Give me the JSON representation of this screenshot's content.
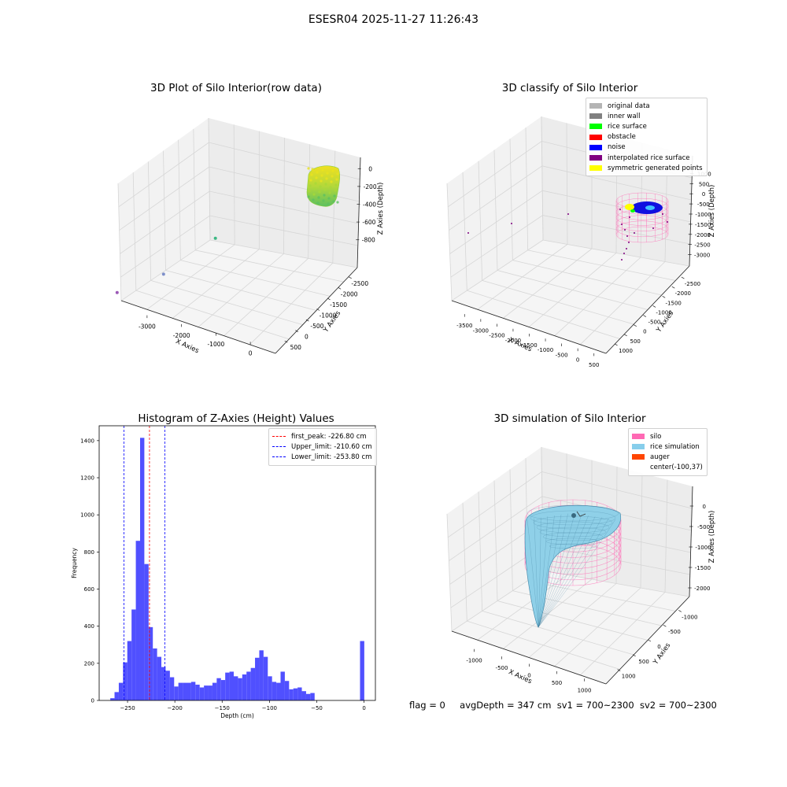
{
  "figure_title": "ESESR04 2025-11-27 11:26:43",
  "footer": {
    "flag": "flag = 0",
    "avg": "avgDepth = 347 cm",
    "sv1": "sv1 = 700~2300",
    "sv2": "sv2 = 700~2300"
  },
  "chart_data": [
    {
      "type": "scatter",
      "projection": "3d",
      "title": "3D Plot of Silo Interior(row data)",
      "xlabel": "X Axies",
      "ylabel": "Y Axies",
      "zlabel": "Z Axies (Depth)",
      "x_ticks": [
        "-3000",
        "-2000",
        "-1000",
        "0"
      ],
      "y_ticks": [
        "500",
        "0",
        "-500",
        "-1000",
        "-1500",
        "-2000",
        "-2500"
      ],
      "z_ticks": [
        "0",
        "-200",
        "-400",
        "-600",
        "-800"
      ],
      "points": [
        {
          "x": -3300,
          "y": -2300,
          "z": -900,
          "color": "#9b59b6"
        },
        {
          "x": -2600,
          "y": -1500,
          "z": -800,
          "color": "#7d8fc9"
        },
        {
          "x": -1900,
          "y": -500,
          "z": -500,
          "color": "#3cb883"
        }
      ],
      "cluster": {
        "description_color": "#c8e02c",
        "x": [
          -300,
          100
        ],
        "y": [
          -200,
          300
        ],
        "z": [
          -250,
          0
        ]
      }
    },
    {
      "type": "scatter",
      "projection": "3d",
      "title": "3D classify of Silo Interior",
      "xlabel": "X Axies",
      "ylabel": "Y Axies",
      "zlabel": "Z Axies (Depth)",
      "x_ticks": [
        "-3500",
        "-3000",
        "-2500",
        "-2000",
        "-1500",
        "-1000",
        "-500",
        "0",
        "500"
      ],
      "y_ticks": [
        "1000",
        "500",
        "0",
        "-500",
        "-1000",
        "-1500",
        "-2000",
        "-2500"
      ],
      "z_ticks": [
        "1000",
        "500",
        "0",
        "-500",
        "-1000",
        "-1500",
        "-2000",
        "-2500",
        "-3000"
      ],
      "legend": [
        {
          "label": "original data",
          "color": "#b4b4b4"
        },
        {
          "label": "inner wall",
          "color": "#808080"
        },
        {
          "label": "rice surface",
          "color": "#00ff00"
        },
        {
          "label": "obstacle",
          "color": "#ff0000"
        },
        {
          "label": "noise",
          "color": "#0000ff"
        },
        {
          "label": "interpolated rice surface",
          "color": "#800080"
        },
        {
          "label": "symmetric generated points",
          "color": "#ffff00"
        }
      ]
    },
    {
      "type": "bar",
      "title": "Histogram of Z-Axies (Height) Values",
      "xlabel": "Depth (cm)",
      "ylabel": "Frequency",
      "xlim": [
        -280,
        12
      ],
      "ylim": [
        0,
        1480
      ],
      "bin_width": 4.5,
      "x_ticks": [
        -250,
        -200,
        -150,
        -100,
        -50,
        0
      ],
      "y_ticks": [
        0,
        200,
        400,
        600,
        800,
        1000,
        1200,
        1400
      ],
      "bar_color": "#5050ff",
      "bins": [
        {
          "x": -266.0,
          "value": 12
        },
        {
          "x": -261.5,
          "value": 45
        },
        {
          "x": -257.0,
          "value": 95
        },
        {
          "x": -252.5,
          "value": 205
        },
        {
          "x": -248.0,
          "value": 320
        },
        {
          "x": -243.5,
          "value": 490
        },
        {
          "x": -239.0,
          "value": 860
        },
        {
          "x": -234.5,
          "value": 1415
        },
        {
          "x": -230.0,
          "value": 735
        },
        {
          "x": -225.5,
          "value": 395
        },
        {
          "x": -221.0,
          "value": 280
        },
        {
          "x": -216.5,
          "value": 235
        },
        {
          "x": -212.0,
          "value": 180
        },
        {
          "x": -207.5,
          "value": 160
        },
        {
          "x": -203.0,
          "value": 125
        },
        {
          "x": -198.5,
          "value": 75
        },
        {
          "x": -194.0,
          "value": 95
        },
        {
          "x": -189.5,
          "value": 95
        },
        {
          "x": -185.0,
          "value": 95
        },
        {
          "x": -180.5,
          "value": 100
        },
        {
          "x": -176.0,
          "value": 85
        },
        {
          "x": -171.5,
          "value": 70
        },
        {
          "x": -167.0,
          "value": 80
        },
        {
          "x": -162.5,
          "value": 80
        },
        {
          "x": -158.0,
          "value": 95
        },
        {
          "x": -153.5,
          "value": 120
        },
        {
          "x": -149.0,
          "value": 110
        },
        {
          "x": -144.5,
          "value": 150
        },
        {
          "x": -140.0,
          "value": 155
        },
        {
          "x": -135.5,
          "value": 130
        },
        {
          "x": -131.0,
          "value": 120
        },
        {
          "x": -126.5,
          "value": 140
        },
        {
          "x": -122.0,
          "value": 155
        },
        {
          "x": -117.5,
          "value": 175
        },
        {
          "x": -113.0,
          "value": 230
        },
        {
          "x": -108.5,
          "value": 270
        },
        {
          "x": -104.0,
          "value": 235
        },
        {
          "x": -99.5,
          "value": 130
        },
        {
          "x": -95.0,
          "value": 100
        },
        {
          "x": -90.5,
          "value": 95
        },
        {
          "x": -86.0,
          "value": 155
        },
        {
          "x": -81.5,
          "value": 105
        },
        {
          "x": -77.0,
          "value": 60
        },
        {
          "x": -72.5,
          "value": 65
        },
        {
          "x": -68.0,
          "value": 70
        },
        {
          "x": -63.5,
          "value": 50
        },
        {
          "x": -59.0,
          "value": 35
        },
        {
          "x": -54.5,
          "value": 40
        },
        {
          "x": -50.0,
          "value": 0
        },
        {
          "x": -45.5,
          "value": 0
        },
        {
          "x": -41.0,
          "value": 0
        },
        {
          "x": -36.5,
          "value": 0
        },
        {
          "x": -32.0,
          "value": 0
        },
        {
          "x": -27.5,
          "value": 0
        },
        {
          "x": -23.0,
          "value": 0
        },
        {
          "x": -18.5,
          "value": 0
        },
        {
          "x": -14.0,
          "value": 0
        },
        {
          "x": -9.5,
          "value": 0
        },
        {
          "x": -5.0,
          "value": 0
        },
        {
          "x": -2.0,
          "value": 320
        }
      ],
      "vlines": [
        {
          "label": "first_peak: -226.80 cm",
          "x": -226.8,
          "color": "#ff0000"
        },
        {
          "label": "Upper_limit: -210.60 cm",
          "x": -210.6,
          "color": "#0000ff"
        },
        {
          "label": "Lower_limit: -253.80 cm",
          "x": -253.8,
          "color": "#0000ff"
        }
      ]
    },
    {
      "type": "surface",
      "projection": "3d",
      "title": "3D simulation of Silo Interior",
      "xlabel": "X Axies",
      "ylabel": "Y Axies",
      "zlabel": "Z Axies (Depth)",
      "x_ticks": [
        "-1000",
        "-500",
        "0",
        "500",
        "1000"
      ],
      "y_ticks": [
        "1000",
        "500",
        "0",
        "-500",
        "-1000"
      ],
      "z_ticks": [
        "0",
        "-500",
        "-1000",
        "-1500",
        "-2000"
      ],
      "legend": [
        {
          "label": "silo",
          "color": "#ff69b4"
        },
        {
          "label": "rice simulation",
          "color": "#87ceeb"
        },
        {
          "label": "auger",
          "color": "#ff4500"
        },
        {
          "label": "center(-100,37)",
          "color": "none"
        }
      ]
    }
  ]
}
